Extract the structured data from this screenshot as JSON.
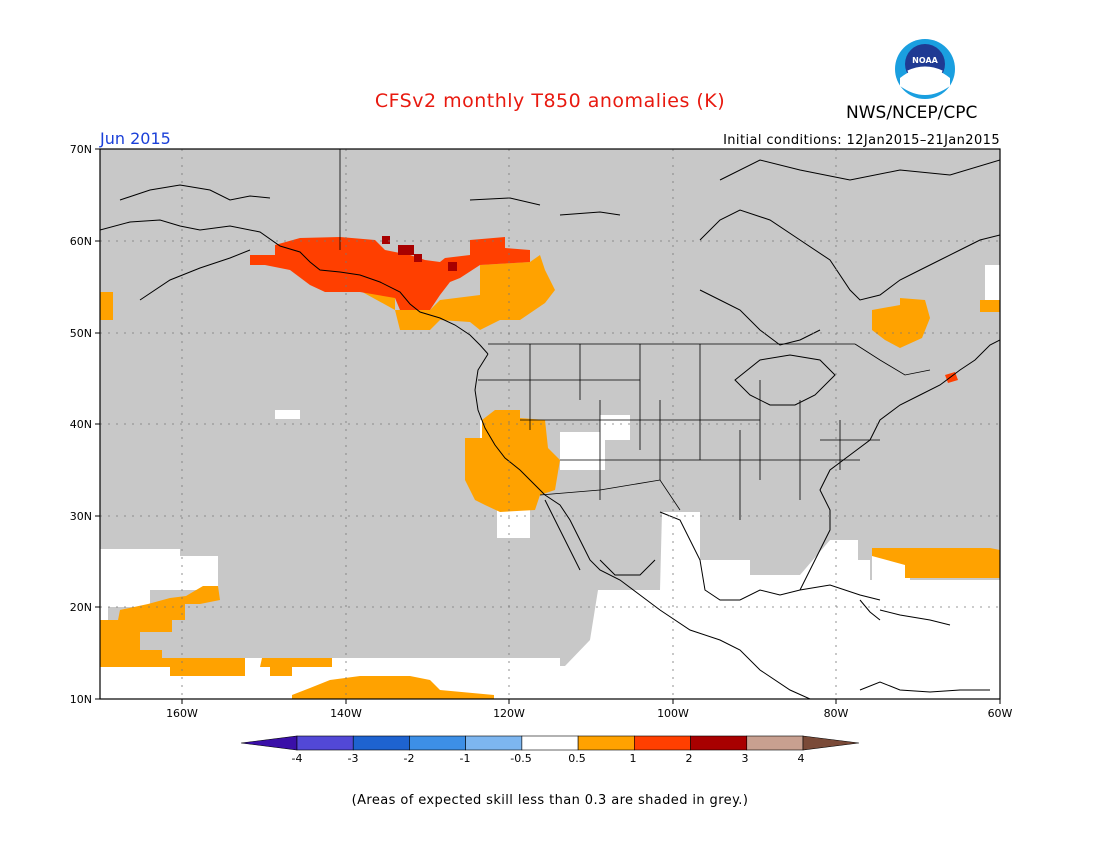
{
  "header": {
    "title": "CFSv2 monthly T850 anomalies (K)",
    "organization": "NWS/NCEP/CPC",
    "logo_text": "NOAA",
    "target_month": "Jun 2015",
    "initial_conditions": "Initial conditions: 12Jan2015–21Jan2015"
  },
  "map": {
    "lat_labels": [
      "70N",
      "60N",
      "50N",
      "40N",
      "30N",
      "20N",
      "10N"
    ],
    "lon_labels": [
      "160W",
      "140W",
      "120W",
      "100W",
      "80W",
      "60W"
    ],
    "background_grey": "#c8c8c8",
    "anomaly_regions": [
      {
        "region": "Western Canada / Alaska panhandle",
        "category": "1 to 2"
      },
      {
        "region": "Northern British Columbia",
        "category": "2 to 3"
      },
      {
        "region": "Western Canada periphery",
        "category": "0.5 to 1"
      },
      {
        "region": "California / Nevada",
        "category": "0.5 to 1"
      },
      {
        "region": "Quebec / Labrador",
        "category": "0.5 to 1"
      },
      {
        "region": "Western Atlantic near 25N",
        "category": "0.5 to 1"
      },
      {
        "region": "Central Pacific near 15N-20N",
        "category": "0.5 to 1"
      },
      {
        "region": "Eastern Pacific near 10N",
        "category": "0.5 to 1"
      }
    ]
  },
  "colorbar": {
    "labels": [
      "-4",
      "-3",
      "-2",
      "-1",
      "-0.5",
      "0.5",
      "1",
      "2",
      "3",
      "4"
    ],
    "colors": [
      "#3a0fa8",
      "#5248d6",
      "#1e63d0",
      "#3d8fe6",
      "#7db6f0",
      "#ffffff",
      "#ffa200",
      "#ff3f00",
      "#a80000",
      "#c8a090",
      "#7a4a38"
    ]
  },
  "footer": {
    "note": "(Areas of expected skill less than 0.3 are shaded in grey.)"
  }
}
